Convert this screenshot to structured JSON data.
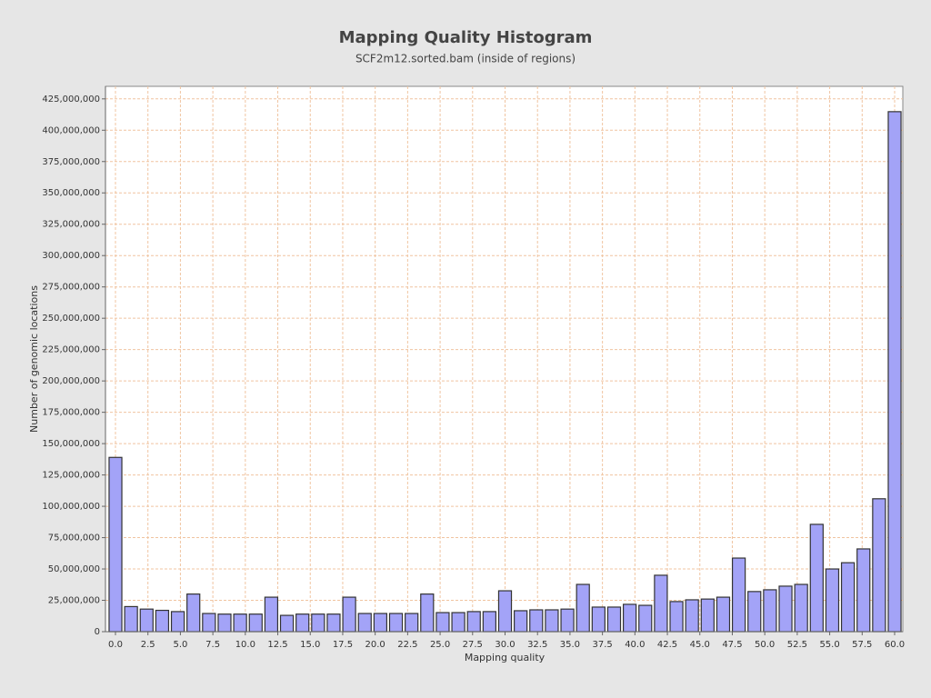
{
  "chart_data": {
    "type": "bar",
    "title": "Mapping Quality Histogram",
    "subtitle": "SCF2m12.sorted.bam (inside of regions)",
    "x_label": "Mapping quality",
    "y_label": "Number of genomic locations",
    "x": [
      0,
      1.2,
      2.4,
      3.6,
      4.8,
      6,
      7.2,
      8.4,
      9.6,
      10.8,
      12,
      13.2,
      14.4,
      15.6,
      16.8,
      18,
      19.2,
      20.4,
      21.6,
      22.8,
      24,
      25.2,
      26.4,
      27.6,
      28.8,
      30,
      31.2,
      32.4,
      33.6,
      34.8,
      36,
      37.2,
      38.4,
      39.6,
      40.8,
      42,
      43.2,
      44.4,
      45.6,
      46.8,
      48,
      49.2,
      50.4,
      51.6,
      52.8,
      54,
      55.2,
      56.4,
      57.6,
      58.8,
      60
    ],
    "values": [
      139000000,
      20000000,
      18000000,
      17000000,
      16000000,
      30000000,
      14500000,
      14000000,
      14000000,
      14000000,
      27500000,
      13000000,
      14000000,
      14000000,
      14000000,
      27500000,
      14500000,
      14500000,
      14500000,
      14500000,
      30000000,
      15200000,
      15200000,
      16000000,
      16000000,
      32600000,
      16700000,
      17400000,
      17400000,
      18000000,
      37700000,
      19600000,
      19600000,
      21800000,
      21000000,
      45000000,
      24000000,
      25400000,
      26000000,
      27500000,
      58700000,
      32000000,
      33400000,
      36300000,
      37700000,
      85600000,
      50000000,
      55000000,
      66000000,
      106000000,
      414800000
    ],
    "color": "#a3a3f7",
    "xlim": [
      -0.77,
      60.63
    ],
    "ylim": [
      0,
      435000000
    ],
    "xticks": [
      {
        "value": 0,
        "label": "0.0"
      },
      2.5,
      {
        "value": 5,
        "label": "5.0"
      },
      7.5,
      {
        "value": 10,
        "label": "10.0"
      },
      12.5,
      {
        "value": 15,
        "label": "15.0"
      },
      17.5,
      {
        "value": 20,
        "label": "20.0"
      },
      22.5,
      {
        "value": 25,
        "label": "25.0"
      },
      27.5,
      {
        "value": 30,
        "label": "30.0"
      },
      32.5,
      {
        "value": 35,
        "label": "35.0"
      },
      37.5,
      {
        "value": 40,
        "label": "40.0"
      },
      42.5,
      {
        "value": 45,
        "label": "45.0"
      },
      47.5,
      {
        "value": 50,
        "label": "50.0"
      },
      52.5,
      {
        "value": 55,
        "label": "55.0"
      },
      57.5,
      {
        "value": 60,
        "label": "60.0"
      }
    ],
    "yticks": [
      0,
      {
        "value": 25000000,
        "label": "25,000,000"
      },
      {
        "value": 50000000,
        "label": "50,000,000"
      },
      {
        "value": 75000000,
        "label": "75,000,000"
      },
      {
        "value": 100000000,
        "label": "100,000,000"
      },
      {
        "value": 125000000,
        "label": "125,000,000"
      },
      {
        "value": 150000000,
        "label": "150,000,000"
      },
      {
        "value": 175000000,
        "label": "175,000,000"
      },
      {
        "value": 200000000,
        "label": "200,000,000"
      },
      {
        "value": 225000000,
        "label": "225,000,000"
      },
      {
        "value": 250000000,
        "label": "250,000,000"
      },
      {
        "value": 275000000,
        "label": "275,000,000"
      },
      {
        "value": 300000000,
        "label": "300,000,000"
      },
      {
        "value": 325000000,
        "label": "325,000,000"
      },
      {
        "value": 350000000,
        "label": "350,000,000"
      },
      {
        "value": 375000000,
        "label": "375,000,000"
      },
      {
        "value": 400000000,
        "label": "400,000,000"
      },
      {
        "value": 425000000,
        "label": "425,000,000"
      }
    ],
    "grid": true
  }
}
